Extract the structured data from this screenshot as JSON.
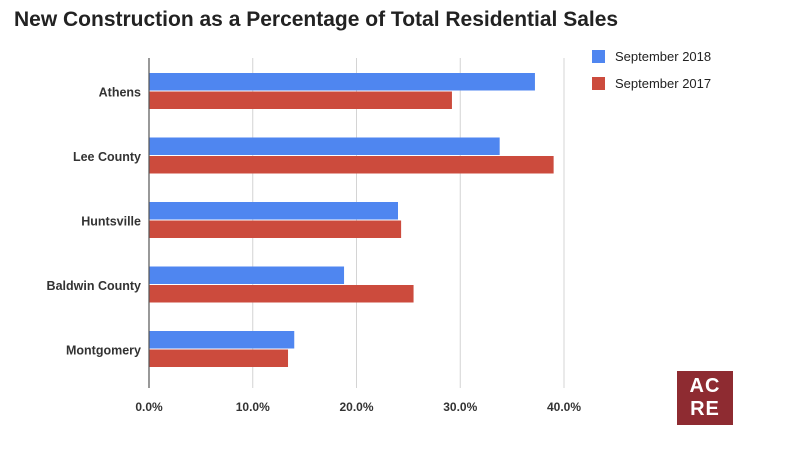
{
  "chart_data": {
    "type": "bar",
    "orientation": "horizontal",
    "title": "New Construction as a Percentage of Total Residential Sales",
    "categories": [
      "Athens",
      "Lee County",
      "Huntsville",
      "Baldwin County",
      "Montgomery"
    ],
    "series": [
      {
        "name": "September 2018",
        "color": "#4f86f0",
        "values": [
          37.2,
          33.8,
          24.0,
          18.8,
          14.0
        ]
      },
      {
        "name": "September 2017",
        "color": "#cc4b3d",
        "values": [
          29.2,
          39.0,
          24.3,
          25.5,
          13.4
        ]
      }
    ],
    "xlim": [
      0,
      40
    ],
    "xticks": [
      0,
      10,
      20,
      30,
      40
    ],
    "xtick_labels": [
      "0.0%",
      "10.0%",
      "20.0%",
      "30.0%",
      "40.0%"
    ],
    "grid": true,
    "legend_position": "top-right"
  },
  "logo": {
    "line1": "AC",
    "line2": "RE",
    "color": "#8e2b31"
  }
}
